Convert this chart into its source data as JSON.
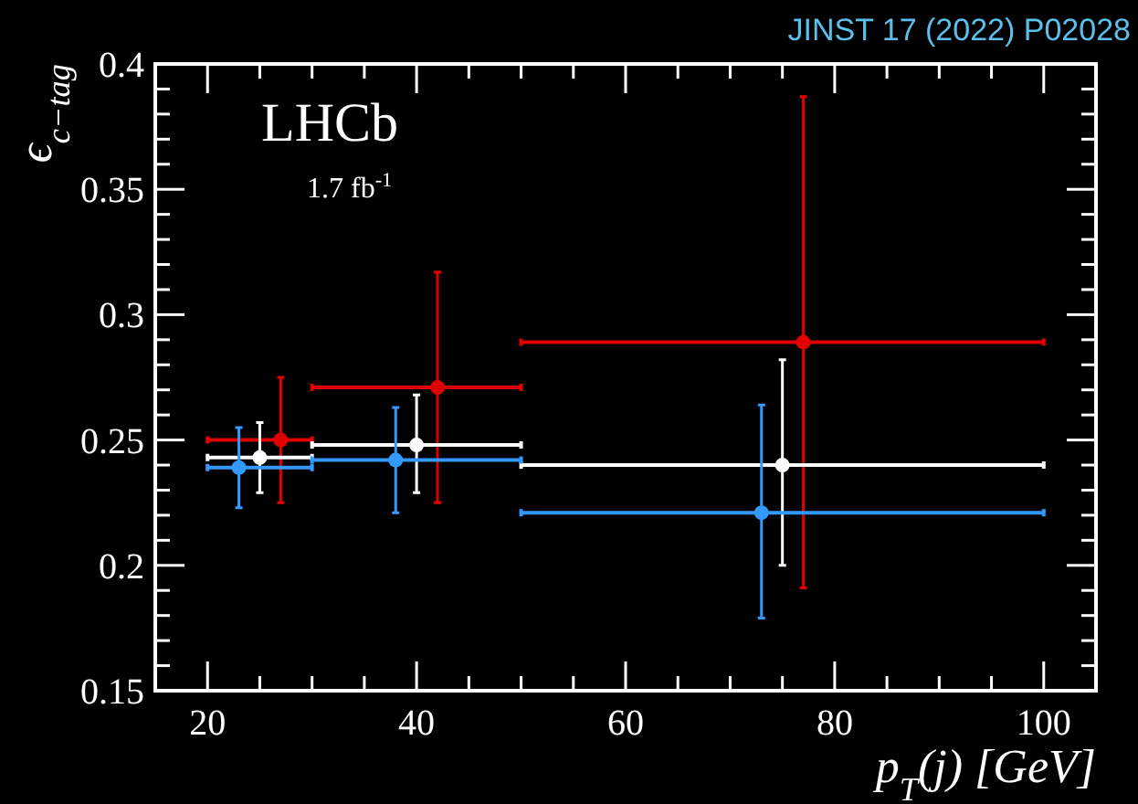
{
  "chart_data": {
    "type": "scatter",
    "xlabel": "p$_{T}$(j) [GeV]",
    "ylabel": "ϵ$_{c−tag}$",
    "annotations": [
      "JINST 17 (2022) P02028",
      "LHCb",
      "1.7 fb$^{-1}$"
    ],
    "xlim": [
      15,
      105
    ],
    "ylim": [
      0.15,
      0.4
    ],
    "xticks": [
      {
        "value": 15,
        "label": null
      },
      20,
      {
        "value": 25,
        "label": null
      },
      {
        "value": 30,
        "label": null
      },
      {
        "value": 35,
        "label": null
      },
      40,
      {
        "value": 45,
        "label": null
      },
      {
        "value": 50,
        "label": null
      },
      {
        "value": 55,
        "label": null
      },
      60,
      {
        "value": 65,
        "label": null
      },
      {
        "value": 70,
        "label": null
      },
      {
        "value": 75,
        "label": null
      },
      80,
      {
        "value": 85,
        "label": null
      },
      {
        "value": 90,
        "label": null
      },
      {
        "value": 95,
        "label": null
      },
      100,
      {
        "value": 105,
        "label": null
      }
    ],
    "yticks": [
      0.15,
      {
        "value": 0.16,
        "label": null
      },
      {
        "value": 0.17,
        "label": null
      },
      {
        "value": 0.18,
        "label": null
      },
      {
        "value": 0.19,
        "label": null
      },
      0.2,
      {
        "value": 0.21,
        "label": null
      },
      {
        "value": 0.22,
        "label": null
      },
      {
        "value": 0.23,
        "label": null
      },
      {
        "value": 0.24,
        "label": null
      },
      0.25,
      {
        "value": 0.26,
        "label": null
      },
      {
        "value": 0.27,
        "label": null
      },
      {
        "value": 0.28,
        "label": null
      },
      {
        "value": 0.29,
        "label": null
      },
      0.3,
      {
        "value": 0.31,
        "label": null
      },
      {
        "value": 0.32,
        "label": null
      },
      {
        "value": 0.33,
        "label": null
      },
      {
        "value": 0.34,
        "label": null
      },
      0.35,
      {
        "value": 0.36,
        "label": null
      },
      {
        "value": 0.37,
        "label": null
      },
      {
        "value": 0.38,
        "label": null
      },
      {
        "value": 0.39,
        "label": null
      },
      0.4
    ],
    "marker": "circle",
    "series": [
      {
        "color": "#e00000",
        "x": [
          27,
          42,
          77
        ],
        "values": [
          0.25,
          0.271,
          0.289
        ],
        "errors": [
          [
            0.225,
            0.275
          ],
          [
            0.225,
            0.317
          ],
          [
            0.191,
            0.387
          ]
        ],
        "xerrors": [
          [
            20,
            30
          ],
          [
            30,
            50
          ],
          [
            50,
            100
          ]
        ]
      },
      {
        "color": "#ffffff",
        "x": [
          25,
          40,
          75
        ],
        "values": [
          0.243,
          0.248,
          0.24
        ],
        "errors": [
          [
            0.229,
            0.257
          ],
          [
            0.229,
            0.268
          ],
          [
            0.2,
            0.282
          ]
        ],
        "xerrors": [
          [
            20,
            30
          ],
          [
            30,
            50
          ],
          [
            50,
            100
          ]
        ]
      },
      {
        "color": "#3399ff",
        "x": [
          23,
          38,
          73
        ],
        "values": [
          0.239,
          0.242,
          0.221
        ],
        "errors": [
          [
            0.223,
            0.255
          ],
          [
            0.221,
            0.263
          ],
          [
            0.179,
            0.264
          ]
        ],
        "xerrors": [
          [
            20,
            30
          ],
          [
            30,
            50
          ],
          [
            50,
            100
          ]
        ]
      }
    ]
  }
}
